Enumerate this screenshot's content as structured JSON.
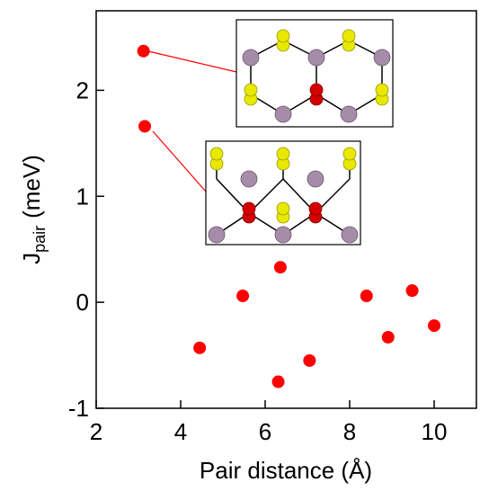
{
  "chart_data": {
    "type": "scatter",
    "xlabel": "Pair distance (Å)",
    "ylabel": {
      "main": "J",
      "subscript": "pair",
      "unit": "(meV)"
    },
    "series": [
      {
        "color": "#ff0000",
        "x": [
          3.12,
          3.15,
          4.45,
          5.47,
          6.36,
          6.31,
          7.05,
          8.4,
          8.91,
          9.48,
          10.0
        ],
        "values": [
          2.37,
          1.66,
          -0.43,
          0.06,
          0.33,
          -0.75,
          -0.55,
          0.06,
          -0.33,
          0.11,
          -0.22
        ]
      }
    ],
    "xlim": [
      2,
      11
    ],
    "xticks": [
      2,
      4,
      6,
      8,
      10
    ],
    "ylim": [
      -1,
      2.75
    ],
    "yticks": [
      -1,
      0,
      1,
      2
    ]
  }
}
